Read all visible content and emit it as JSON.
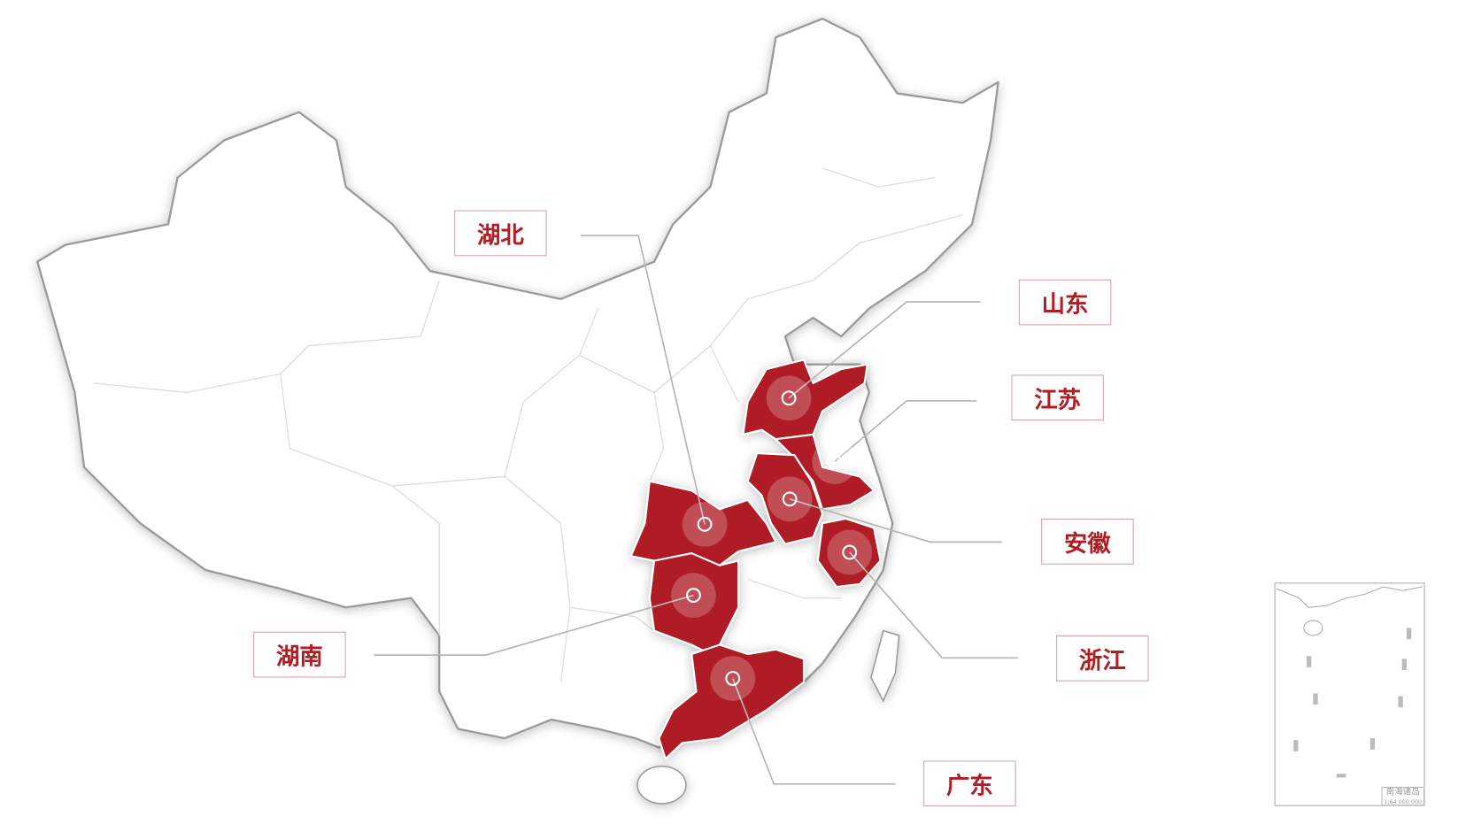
{
  "map": {
    "highlight_color": "#b01d25",
    "outline_color": "#9a9a9a",
    "provinces": [
      {
        "id": "hubei",
        "label": "湖北"
      },
      {
        "id": "shandong",
        "label": "山东"
      },
      {
        "id": "jiangsu",
        "label": "江苏"
      },
      {
        "id": "anhui",
        "label": "安徽"
      },
      {
        "id": "zhejiang",
        "label": "浙江"
      },
      {
        "id": "hunan",
        "label": "湖南"
      },
      {
        "id": "guangdong",
        "label": "广东"
      }
    ]
  },
  "inset": {
    "title": "南海诸岛",
    "scale": "1:64 000 000"
  }
}
